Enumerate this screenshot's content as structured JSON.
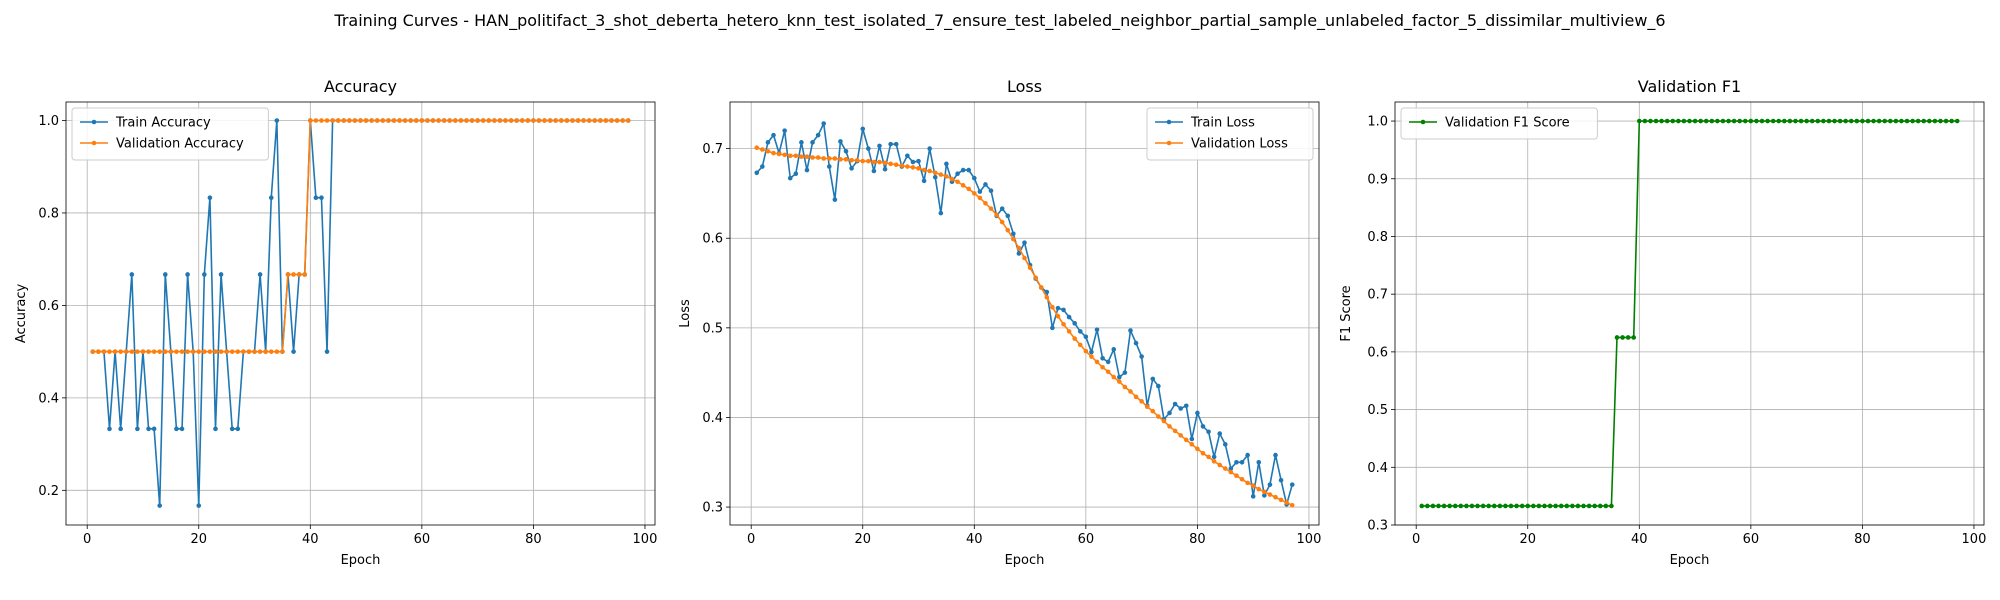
{
  "figure": {
    "suptitle": "Training Curves - HAN_politifact_3_shot_deberta_hetero_knn_test_isolated_7_ensure_test_labeled_neighbor_partial_sample_unlabeled_factor_5_dissimilar_multiview_6"
  },
  "chart_data": [
    {
      "type": "line",
      "title": "Accuracy",
      "xlabel": "Epoch",
      "ylabel": "Accuracy",
      "xlim": [
        -3.8,
        101.8
      ],
      "ylim": [
        0.125,
        1.04
      ],
      "xticks": [
        0,
        20,
        40,
        60,
        80,
        100
      ],
      "yticks": [
        0.2,
        0.4,
        0.6,
        0.8,
        1.0
      ],
      "grid": true,
      "legend": "upper left",
      "series": [
        {
          "name": "Train Accuracy",
          "color": "#1f77b4",
          "x": [
            1,
            2,
            3,
            4,
            5,
            6,
            7,
            8,
            9,
            10,
            11,
            12,
            13,
            14,
            15,
            16,
            17,
            18,
            19,
            20,
            21,
            22,
            23,
            24,
            25,
            26,
            27,
            28,
            29,
            30,
            31,
            32,
            33,
            34,
            35,
            36,
            37,
            38,
            39,
            40,
            41,
            42,
            43,
            44,
            45,
            46,
            47,
            48,
            49,
            50,
            51,
            52,
            53,
            54,
            55,
            56,
            57,
            58,
            59,
            60,
            61,
            62,
            63,
            64,
            65,
            66,
            67,
            68,
            69,
            70,
            71,
            72,
            73,
            74,
            75,
            76,
            77,
            78,
            79,
            80,
            81,
            82,
            83,
            84,
            85,
            86,
            87,
            88,
            89,
            90,
            91,
            92,
            93,
            94,
            95,
            96,
            97
          ],
          "values": [
            0.5,
            0.5,
            0.5,
            0.333,
            0.5,
            0.333,
            0.5,
            0.667,
            0.333,
            0.5,
            0.333,
            0.333,
            0.167,
            0.667,
            0.5,
            0.333,
            0.333,
            0.667,
            0.5,
            0.167,
            0.667,
            0.833,
            0.333,
            0.667,
            0.5,
            0.333,
            0.333,
            0.5,
            0.5,
            0.5,
            0.667,
            0.5,
            0.833,
            1.0,
            0.5,
            0.667,
            0.5,
            0.667,
            0.667,
            1.0,
            0.833,
            0.833,
            0.5,
            1.0,
            1.0,
            1.0,
            1.0,
            1.0,
            1.0,
            1.0,
            1.0,
            1.0,
            1.0,
            1.0,
            1.0,
            1.0,
            1.0,
            1.0,
            1.0,
            1.0,
            1.0,
            1.0,
            1.0,
            1.0,
            1.0,
            1.0,
            1.0,
            1.0,
            1.0,
            1.0,
            1.0,
            1.0,
            1.0,
            1.0,
            1.0,
            1.0,
            1.0,
            1.0,
            1.0,
            1.0,
            1.0,
            1.0,
            1.0,
            1.0,
            1.0,
            1.0,
            1.0,
            1.0,
            1.0,
            1.0,
            1.0,
            1.0,
            1.0,
            1.0,
            1.0,
            1.0,
            1.0
          ]
        },
        {
          "name": "Validation Accuracy",
          "color": "#ff7f0e",
          "x": [
            1,
            2,
            3,
            4,
            5,
            6,
            7,
            8,
            9,
            10,
            11,
            12,
            13,
            14,
            15,
            16,
            17,
            18,
            19,
            20,
            21,
            22,
            23,
            24,
            25,
            26,
            27,
            28,
            29,
            30,
            31,
            32,
            33,
            34,
            35,
            36,
            37,
            38,
            39,
            40,
            41,
            42,
            43,
            44,
            45,
            46,
            47,
            48,
            49,
            50,
            51,
            52,
            53,
            54,
            55,
            56,
            57,
            58,
            59,
            60,
            61,
            62,
            63,
            64,
            65,
            66,
            67,
            68,
            69,
            70,
            71,
            72,
            73,
            74,
            75,
            76,
            77,
            78,
            79,
            80,
            81,
            82,
            83,
            84,
            85,
            86,
            87,
            88,
            89,
            90,
            91,
            92,
            93,
            94,
            95,
            96,
            97
          ],
          "values": [
            0.5,
            0.5,
            0.5,
            0.5,
            0.5,
            0.5,
            0.5,
            0.5,
            0.5,
            0.5,
            0.5,
            0.5,
            0.5,
            0.5,
            0.5,
            0.5,
            0.5,
            0.5,
            0.5,
            0.5,
            0.5,
            0.5,
            0.5,
            0.5,
            0.5,
            0.5,
            0.5,
            0.5,
            0.5,
            0.5,
            0.5,
            0.5,
            0.5,
            0.5,
            0.5,
            0.667,
            0.667,
            0.667,
            0.667,
            1.0,
            1.0,
            1.0,
            1.0,
            1.0,
            1.0,
            1.0,
            1.0,
            1.0,
            1.0,
            1.0,
            1.0,
            1.0,
            1.0,
            1.0,
            1.0,
            1.0,
            1.0,
            1.0,
            1.0,
            1.0,
            1.0,
            1.0,
            1.0,
            1.0,
            1.0,
            1.0,
            1.0,
            1.0,
            1.0,
            1.0,
            1.0,
            1.0,
            1.0,
            1.0,
            1.0,
            1.0,
            1.0,
            1.0,
            1.0,
            1.0,
            1.0,
            1.0,
            1.0,
            1.0,
            1.0,
            1.0,
            1.0,
            1.0,
            1.0,
            1.0,
            1.0,
            1.0,
            1.0,
            1.0,
            1.0,
            1.0,
            1.0
          ]
        }
      ]
    },
    {
      "type": "line",
      "title": "Loss",
      "xlabel": "Epoch",
      "ylabel": "Loss",
      "xlim": [
        -3.8,
        101.8
      ],
      "ylim": [
        0.28,
        0.752
      ],
      "xticks": [
        0,
        20,
        40,
        60,
        80,
        100
      ],
      "yticks": [
        0.3,
        0.4,
        0.5,
        0.6,
        0.7
      ],
      "grid": true,
      "legend": "upper right",
      "series": [
        {
          "name": "Train Loss",
          "color": "#1f77b4",
          "x": [
            1,
            2,
            3,
            4,
            5,
            6,
            7,
            8,
            9,
            10,
            11,
            12,
            13,
            14,
            15,
            16,
            17,
            18,
            19,
            20,
            21,
            22,
            23,
            24,
            25,
            26,
            27,
            28,
            29,
            30,
            31,
            32,
            33,
            34,
            35,
            36,
            37,
            38,
            39,
            40,
            41,
            42,
            43,
            44,
            45,
            46,
            47,
            48,
            49,
            50,
            51,
            52,
            53,
            54,
            55,
            56,
            57,
            58,
            59,
            60,
            61,
            62,
            63,
            64,
            65,
            66,
            67,
            68,
            69,
            70,
            71,
            72,
            73,
            74,
            75,
            76,
            77,
            78,
            79,
            80,
            81,
            82,
            83,
            84,
            85,
            86,
            87,
            88,
            89,
            90,
            91,
            92,
            93,
            94,
            95,
            96,
            97
          ],
          "values": [
            0.673,
            0.68,
            0.707,
            0.715,
            0.695,
            0.72,
            0.667,
            0.672,
            0.707,
            0.676,
            0.707,
            0.715,
            0.728,
            0.68,
            0.643,
            0.708,
            0.697,
            0.678,
            0.686,
            0.722,
            0.7,
            0.675,
            0.703,
            0.677,
            0.705,
            0.705,
            0.68,
            0.692,
            0.685,
            0.686,
            0.664,
            0.7,
            0.668,
            0.628,
            0.683,
            0.663,
            0.672,
            0.676,
            0.676,
            0.667,
            0.652,
            0.66,
            0.653,
            0.625,
            0.633,
            0.625,
            0.605,
            0.583,
            0.595,
            0.57,
            0.555,
            0.545,
            0.54,
            0.5,
            0.522,
            0.52,
            0.512,
            0.505,
            0.496,
            0.49,
            0.473,
            0.498,
            0.466,
            0.462,
            0.476,
            0.445,
            0.45,
            0.497,
            0.483,
            0.468,
            0.413,
            0.443,
            0.435,
            0.398,
            0.405,
            0.415,
            0.41,
            0.413,
            0.376,
            0.405,
            0.39,
            0.384,
            0.356,
            0.382,
            0.37,
            0.343,
            0.35,
            0.35,
            0.358,
            0.312,
            0.35,
            0.313,
            0.325,
            0.358,
            0.33,
            0.303,
            0.325
          ]
        },
        {
          "name": "Validation Loss",
          "color": "#ff7f0e",
          "x": [
            1,
            2,
            3,
            4,
            5,
            6,
            7,
            8,
            9,
            10,
            11,
            12,
            13,
            14,
            15,
            16,
            17,
            18,
            19,
            20,
            21,
            22,
            23,
            24,
            25,
            26,
            27,
            28,
            29,
            30,
            31,
            32,
            33,
            34,
            35,
            36,
            37,
            38,
            39,
            40,
            41,
            42,
            43,
            44,
            45,
            46,
            47,
            48,
            49,
            50,
            51,
            52,
            53,
            54,
            55,
            56,
            57,
            58,
            59,
            60,
            61,
            62,
            63,
            64,
            65,
            66,
            67,
            68,
            69,
            70,
            71,
            72,
            73,
            74,
            75,
            76,
            77,
            78,
            79,
            80,
            81,
            82,
            83,
            84,
            85,
            86,
            87,
            88,
            89,
            90,
            91,
            92,
            93,
            94,
            95,
            96,
            97
          ],
          "values": [
            0.701,
            0.699,
            0.697,
            0.695,
            0.694,
            0.693,
            0.692,
            0.692,
            0.691,
            0.691,
            0.69,
            0.69,
            0.689,
            0.689,
            0.689,
            0.688,
            0.688,
            0.687,
            0.687,
            0.686,
            0.686,
            0.685,
            0.685,
            0.684,
            0.683,
            0.682,
            0.681,
            0.68,
            0.679,
            0.678,
            0.676,
            0.675,
            0.673,
            0.671,
            0.669,
            0.666,
            0.663,
            0.659,
            0.655,
            0.65,
            0.645,
            0.639,
            0.633,
            0.626,
            0.618,
            0.609,
            0.599,
            0.589,
            0.578,
            0.567,
            0.556,
            0.545,
            0.534,
            0.523,
            0.513,
            0.504,
            0.496,
            0.488,
            0.481,
            0.474,
            0.468,
            0.462,
            0.456,
            0.451,
            0.445,
            0.44,
            0.434,
            0.429,
            0.423,
            0.418,
            0.412,
            0.407,
            0.401,
            0.396,
            0.39,
            0.385,
            0.38,
            0.375,
            0.37,
            0.365,
            0.36,
            0.356,
            0.351,
            0.347,
            0.343,
            0.339,
            0.335,
            0.331,
            0.327,
            0.324,
            0.32,
            0.317,
            0.314,
            0.311,
            0.308,
            0.305,
            0.302
          ]
        }
      ]
    },
    {
      "type": "line",
      "title": "Validation F1",
      "xlabel": "Epoch",
      "ylabel": "F1 Score",
      "xlim": [
        -3.8,
        101.8
      ],
      "ylim": [
        0.3,
        1.033
      ],
      "xticks": [
        0,
        20,
        40,
        60,
        80,
        100
      ],
      "yticks": [
        0.3,
        0.4,
        0.5,
        0.6,
        0.7,
        0.8,
        0.9,
        1.0
      ],
      "grid": true,
      "legend": "upper left",
      "series": [
        {
          "name": "Validation F1 Score",
          "color": "#008000",
          "x": [
            1,
            2,
            3,
            4,
            5,
            6,
            7,
            8,
            9,
            10,
            11,
            12,
            13,
            14,
            15,
            16,
            17,
            18,
            19,
            20,
            21,
            22,
            23,
            24,
            25,
            26,
            27,
            28,
            29,
            30,
            31,
            32,
            33,
            34,
            35,
            36,
            37,
            38,
            39,
            40,
            41,
            42,
            43,
            44,
            45,
            46,
            47,
            48,
            49,
            50,
            51,
            52,
            53,
            54,
            55,
            56,
            57,
            58,
            59,
            60,
            61,
            62,
            63,
            64,
            65,
            66,
            67,
            68,
            69,
            70,
            71,
            72,
            73,
            74,
            75,
            76,
            77,
            78,
            79,
            80,
            81,
            82,
            83,
            84,
            85,
            86,
            87,
            88,
            89,
            90,
            91,
            92,
            93,
            94,
            95,
            96,
            97
          ],
          "values": [
            0.333,
            0.333,
            0.333,
            0.333,
            0.333,
            0.333,
            0.333,
            0.333,
            0.333,
            0.333,
            0.333,
            0.333,
            0.333,
            0.333,
            0.333,
            0.333,
            0.333,
            0.333,
            0.333,
            0.333,
            0.333,
            0.333,
            0.333,
            0.333,
            0.333,
            0.333,
            0.333,
            0.333,
            0.333,
            0.333,
            0.333,
            0.333,
            0.333,
            0.333,
            0.333,
            0.625,
            0.625,
            0.625,
            0.625,
            1.0,
            1.0,
            1.0,
            1.0,
            1.0,
            1.0,
            1.0,
            1.0,
            1.0,
            1.0,
            1.0,
            1.0,
            1.0,
            1.0,
            1.0,
            1.0,
            1.0,
            1.0,
            1.0,
            1.0,
            1.0,
            1.0,
            1.0,
            1.0,
            1.0,
            1.0,
            1.0,
            1.0,
            1.0,
            1.0,
            1.0,
            1.0,
            1.0,
            1.0,
            1.0,
            1.0,
            1.0,
            1.0,
            1.0,
            1.0,
            1.0,
            1.0,
            1.0,
            1.0,
            1.0,
            1.0,
            1.0,
            1.0,
            1.0,
            1.0,
            1.0,
            1.0,
            1.0,
            1.0,
            1.0,
            1.0,
            1.0,
            1.0
          ]
        }
      ]
    }
  ]
}
